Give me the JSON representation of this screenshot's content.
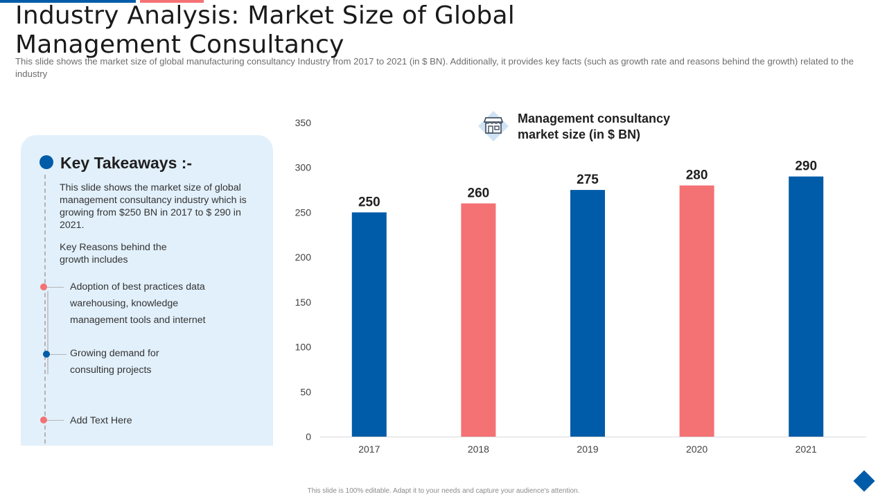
{
  "slide": {
    "title": "Industry Analysis: Market Size of Global Management Consultancy",
    "subtitle": "This slide shows the market size of global manufacturing consultancy Industry from 2017 to 2021 (in $ BN). Additionally, it provides key facts (such as growth rate and reasons behind the growth) related to the industry",
    "footer": "This slide is 100% editable. Adapt it to your needs and capture your audience's attention."
  },
  "takeaways": {
    "heading": "Key Takeaways :-",
    "paragraph1": "This slide shows the market size of global management consultancy industry which is growing from $250 BN in 2017 to $ 290 in 2021.",
    "paragraph2": "Key Reasons behind the growth includes",
    "bullets": [
      {
        "text": "Adoption of best practices data warehousing, knowledge management tools and internet",
        "color": "#f47174"
      },
      {
        "text": "Growing demand for consulting projects",
        "color": "#005ca8"
      },
      {
        "text": "Add Text Here",
        "color": "#f47174"
      }
    ]
  },
  "colors": {
    "blue": "#005ca8",
    "pink": "#f47174",
    "panel": "#e2f0fb"
  },
  "icons": {
    "legend": "store-icon",
    "corner": "diamond-icon"
  },
  "chart_data": {
    "type": "bar",
    "title": "Management consultancy market size (in $ BN)",
    "categories": [
      "2017",
      "2018",
      "2019",
      "2020",
      "2021"
    ],
    "values": [
      250,
      260,
      275,
      280,
      290
    ],
    "bar_colors": [
      "#005ca8",
      "#f47174",
      "#005ca8",
      "#f47174",
      "#005ca8"
    ],
    "ylim": [
      0,
      350
    ],
    "yticks": [
      0,
      50,
      100,
      150,
      200,
      250,
      300,
      350
    ],
    "xlabel": "",
    "ylabel": "",
    "grid": false,
    "data_labels": true
  }
}
